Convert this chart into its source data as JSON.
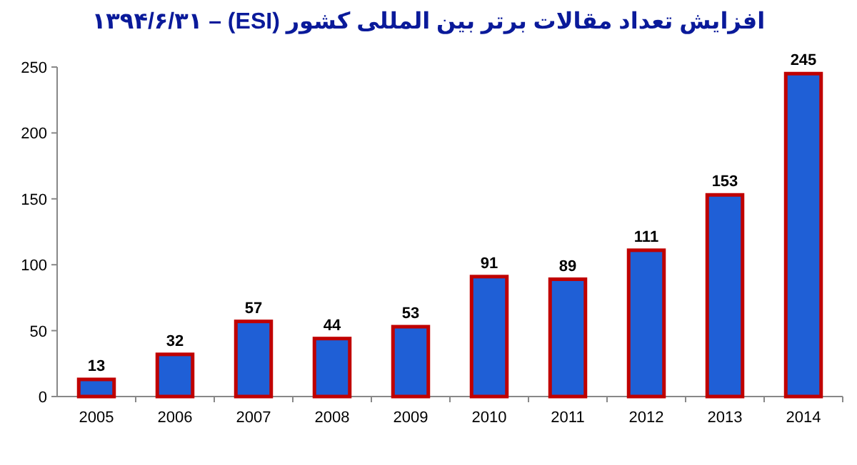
{
  "chart_data": {
    "type": "bar",
    "title": "افزایش تعداد مقالات برتر بین المللی کشور (ESI) – ۱۳۹۴/۶/۳۱",
    "categories": [
      "2005",
      "2006",
      "2007",
      "2008",
      "2009",
      "2010",
      "2011",
      "2012",
      "2013",
      "2014"
    ],
    "values": [
      13,
      32,
      57,
      44,
      53,
      91,
      89,
      111,
      153,
      245
    ],
    "color": "#1f5fd6",
    "data_labels": true,
    "ylim": [
      0,
      250
    ],
    "yticks": [
      0,
      50,
      100,
      150,
      200,
      250
    ],
    "grid": false
  }
}
